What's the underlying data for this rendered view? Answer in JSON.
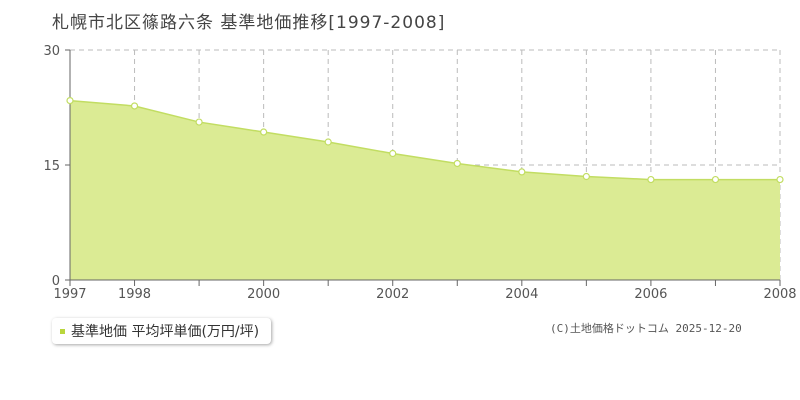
{
  "title": "札幌市北区篠路六条  基準地価推移[1997-2008]",
  "legend": {
    "label": "基準地価 平均坪単価(万円/坪)"
  },
  "credit": "(C)土地価格ドットコム 2025-12-20",
  "colors": {
    "area_fill": "#dbeb94",
    "line": "#c2dd62",
    "marker_fill": "#ffffff",
    "grid": "#bbbbbb",
    "axis": "#666666",
    "legend_swatch": "#b9d63c"
  },
  "chart_data": {
    "type": "area",
    "title": "札幌市北区篠路六条  基準地価推移[1997-2008]",
    "x": [
      1997,
      1998,
      1999,
      2000,
      2001,
      2002,
      2003,
      2004,
      2005,
      2006,
      2007,
      2008
    ],
    "series": [
      {
        "name": "基準地価 平均坪単価(万円/坪)",
        "values": [
          23.4,
          22.7,
          20.6,
          19.3,
          18.0,
          16.5,
          15.2,
          14.1,
          13.5,
          13.1,
          13.1,
          13.1
        ]
      }
    ],
    "x_tick_labels": [
      "1997",
      "1998",
      "2000",
      "2002",
      "2004",
      "2006",
      "2008"
    ],
    "y_ticks": [
      0,
      15,
      30
    ],
    "xlim": [
      1997,
      2008
    ],
    "ylim": [
      0,
      30
    ],
    "grid": true,
    "legend_position": "bottom-left"
  }
}
